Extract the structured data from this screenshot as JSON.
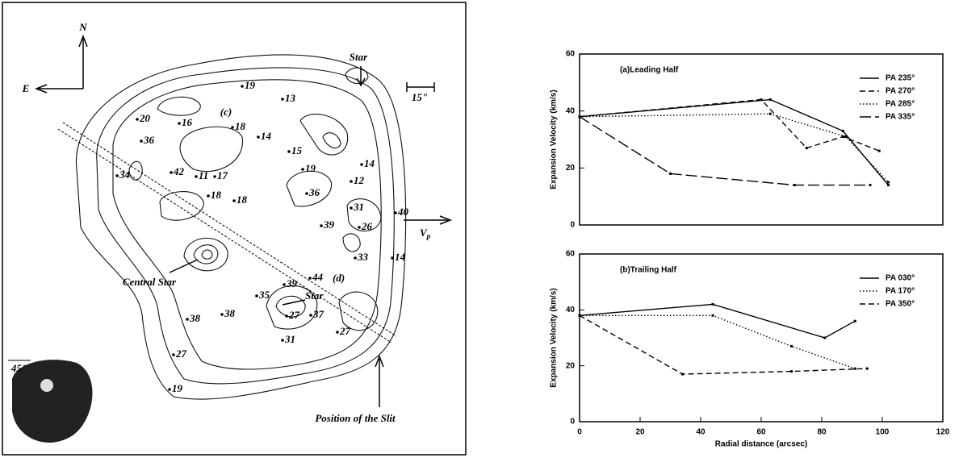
{
  "map": {
    "north": "N",
    "east": "E",
    "star_top": "Star",
    "star_bottom": "Star",
    "scale": "15\"",
    "region_c": "(c)",
    "region_d": "(d)",
    "central_star": "Central Star",
    "velocity": "V",
    "velocity_sub": "p",
    "slit": "Position of the Slit",
    "inset_scale": "45\"",
    "velocities": [
      19,
      13,
      20,
      16,
      18,
      14,
      36,
      15,
      34,
      42,
      19,
      14,
      12,
      11,
      17,
      18,
      18,
      36,
      31,
      39,
      26,
      40,
      33,
      14,
      35,
      39,
      44,
      38,
      38,
      27,
      37,
      31,
      27,
      27,
      19
    ]
  },
  "chart_data": [
    {
      "type": "line",
      "title": "(a)Leading Half",
      "ylabel": "Expansion Velocity (km/s)",
      "xlim": [
        0,
        120
      ],
      "ylim": [
        0,
        60
      ],
      "yticks": [
        0,
        20,
        40,
        60
      ],
      "legend": "upper right",
      "series": [
        {
          "name": "PA 235°",
          "color": "#000000",
          "dash": "solid",
          "x": [
            0,
            63,
            87,
            102
          ],
          "values": [
            38,
            44,
            33,
            14
          ]
        },
        {
          "name": "PA 270°",
          "color": "#000000",
          "dash": "dashed",
          "x": [
            0,
            60,
            75,
            87,
            99
          ],
          "values": [
            38,
            44,
            27,
            31,
            26
          ]
        },
        {
          "name": "PA 285°",
          "color": "#000000",
          "dash": "dotted",
          "x": [
            0,
            63,
            88,
            102
          ],
          "values": [
            38,
            39,
            31,
            15
          ]
        },
        {
          "name": "PA 335°",
          "color": "#000000",
          "dash": "longdash",
          "x": [
            0,
            30,
            71,
            96
          ],
          "values": [
            38,
            18,
            14,
            14
          ]
        }
      ]
    },
    {
      "type": "line",
      "title": "(b)Trailing Half",
      "ylabel": "Expansion Velocity (km/s)",
      "xlabel": "Radial distance (arcsec)",
      "xlim": [
        0,
        120
      ],
      "ylim": [
        0,
        60
      ],
      "xticks": [
        0,
        20,
        40,
        60,
        80,
        100,
        120
      ],
      "yticks": [
        0,
        20,
        40,
        60
      ],
      "legend": "upper right",
      "series": [
        {
          "name": "PA 030°",
          "color": "#000000",
          "dash": "solid",
          "x": [
            0,
            44,
            81,
            91
          ],
          "values": [
            38,
            42,
            30,
            36
          ]
        },
        {
          "name": "PA 170°",
          "color": "#000000",
          "dash": "dotted",
          "x": [
            0,
            44,
            70,
            91
          ],
          "values": [
            38,
            38,
            27,
            19
          ]
        },
        {
          "name": "PA 350°",
          "color": "#000000",
          "dash": "dashed",
          "x": [
            0,
            34,
            70,
            95
          ],
          "values": [
            38,
            17,
            18,
            19
          ]
        }
      ]
    }
  ]
}
